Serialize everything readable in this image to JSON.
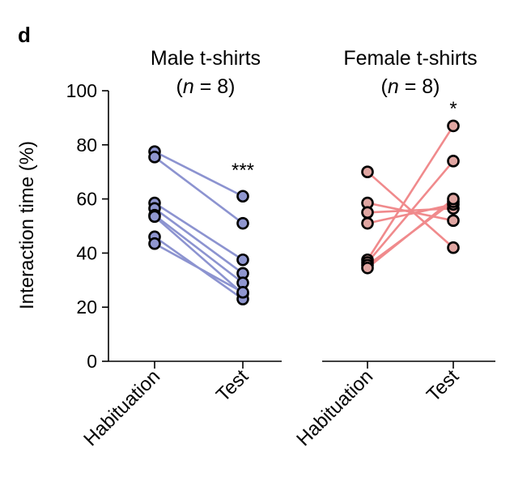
{
  "panel_label": "d",
  "chart_data": [
    {
      "type": "scatter",
      "title_line1": "Male t-shirts",
      "title_line2_var": "n",
      "title_line2_rest": " = 8)",
      "title_line2_open": "(",
      "ylabel": "Interaction time (%)",
      "ylim": [
        0,
        100
      ],
      "yticks": [
        "0",
        "20",
        "40",
        "60",
        "80",
        "100"
      ],
      "categories": [
        "Habituation",
        "Test"
      ],
      "significance": "***",
      "color_line": "#8c93d0",
      "color_marker": "#8f96cf",
      "paired_values": [
        [
          77.5,
          61
        ],
        [
          75.5,
          51
        ],
        [
          58.5,
          37.5
        ],
        [
          56.5,
          32.5
        ],
        [
          54,
          29
        ],
        [
          53.5,
          25
        ],
        [
          46,
          23
        ],
        [
          43.5,
          25.5
        ]
      ]
    },
    {
      "type": "scatter",
      "title_line1": "Female t-shirts",
      "title_line2_var": "n",
      "title_line2_rest": " = 8)",
      "title_line2_open": "(",
      "ylim": [
        0,
        100
      ],
      "categories": [
        "Habituation",
        "Test"
      ],
      "significance": "*",
      "color_line": "#f08a8c",
      "color_marker": "#e0a6a2",
      "paired_values": [
        [
          70,
          42
        ],
        [
          58.5,
          52
        ],
        [
          55,
          56.5
        ],
        [
          51,
          58
        ],
        [
          37.5,
          87
        ],
        [
          36.5,
          74
        ],
        [
          35.5,
          59
        ],
        [
          34.5,
          60
        ]
      ]
    }
  ]
}
